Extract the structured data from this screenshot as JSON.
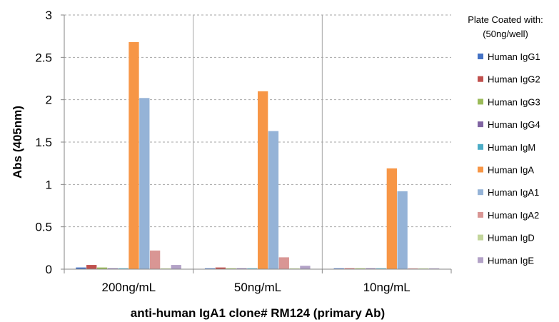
{
  "chart_data": {
    "type": "bar",
    "xlabel": "anti-human IgA1 clone# RM124 (primary Ab)",
    "ylabel": "Abs (405nm)",
    "ylim": [
      0,
      3
    ],
    "yticks": [
      "0",
      "0.5",
      "1",
      "1.5",
      "2",
      "2.5",
      "3"
    ],
    "categories": [
      "200ng/mL",
      "50ng/mL",
      "10ng/mL"
    ],
    "legend": {
      "title_line1": "Plate Coated with:",
      "title_line2": "(50ng/well)",
      "placement": "right"
    },
    "grid": true,
    "series": [
      {
        "name": "Human IgG1",
        "color": "#4472C4",
        "values": [
          0.02,
          0.01,
          0.01
        ]
      },
      {
        "name": "Human IgG2",
        "color": "#C0504D",
        "values": [
          0.05,
          0.02,
          0.01
        ]
      },
      {
        "name": "Human IgG3",
        "color": "#9BBB59",
        "values": [
          0.02,
          0.01,
          0.01
        ]
      },
      {
        "name": "Human IgG4",
        "color": "#8064A2",
        "values": [
          0.01,
          0.01,
          0.01
        ]
      },
      {
        "name": "Human IgM",
        "color": "#4BACC6",
        "values": [
          0.01,
          0.01,
          0.01
        ]
      },
      {
        "name": "Human IgA",
        "color": "#F79646",
        "values": [
          2.68,
          2.1,
          1.19
        ]
      },
      {
        "name": "Human IgA1",
        "color": "#95B3D7",
        "values": [
          2.02,
          1.63,
          0.92
        ]
      },
      {
        "name": "Human IgA2",
        "color": "#D99694",
        "values": [
          0.22,
          0.14,
          0.01
        ]
      },
      {
        "name": "Human IgD",
        "color": "#C3D69B",
        "values": [
          0.01,
          0.01,
          0.01
        ]
      },
      {
        "name": "Human IgE",
        "color": "#B3A2C7",
        "values": [
          0.05,
          0.04,
          0.01
        ]
      }
    ]
  }
}
